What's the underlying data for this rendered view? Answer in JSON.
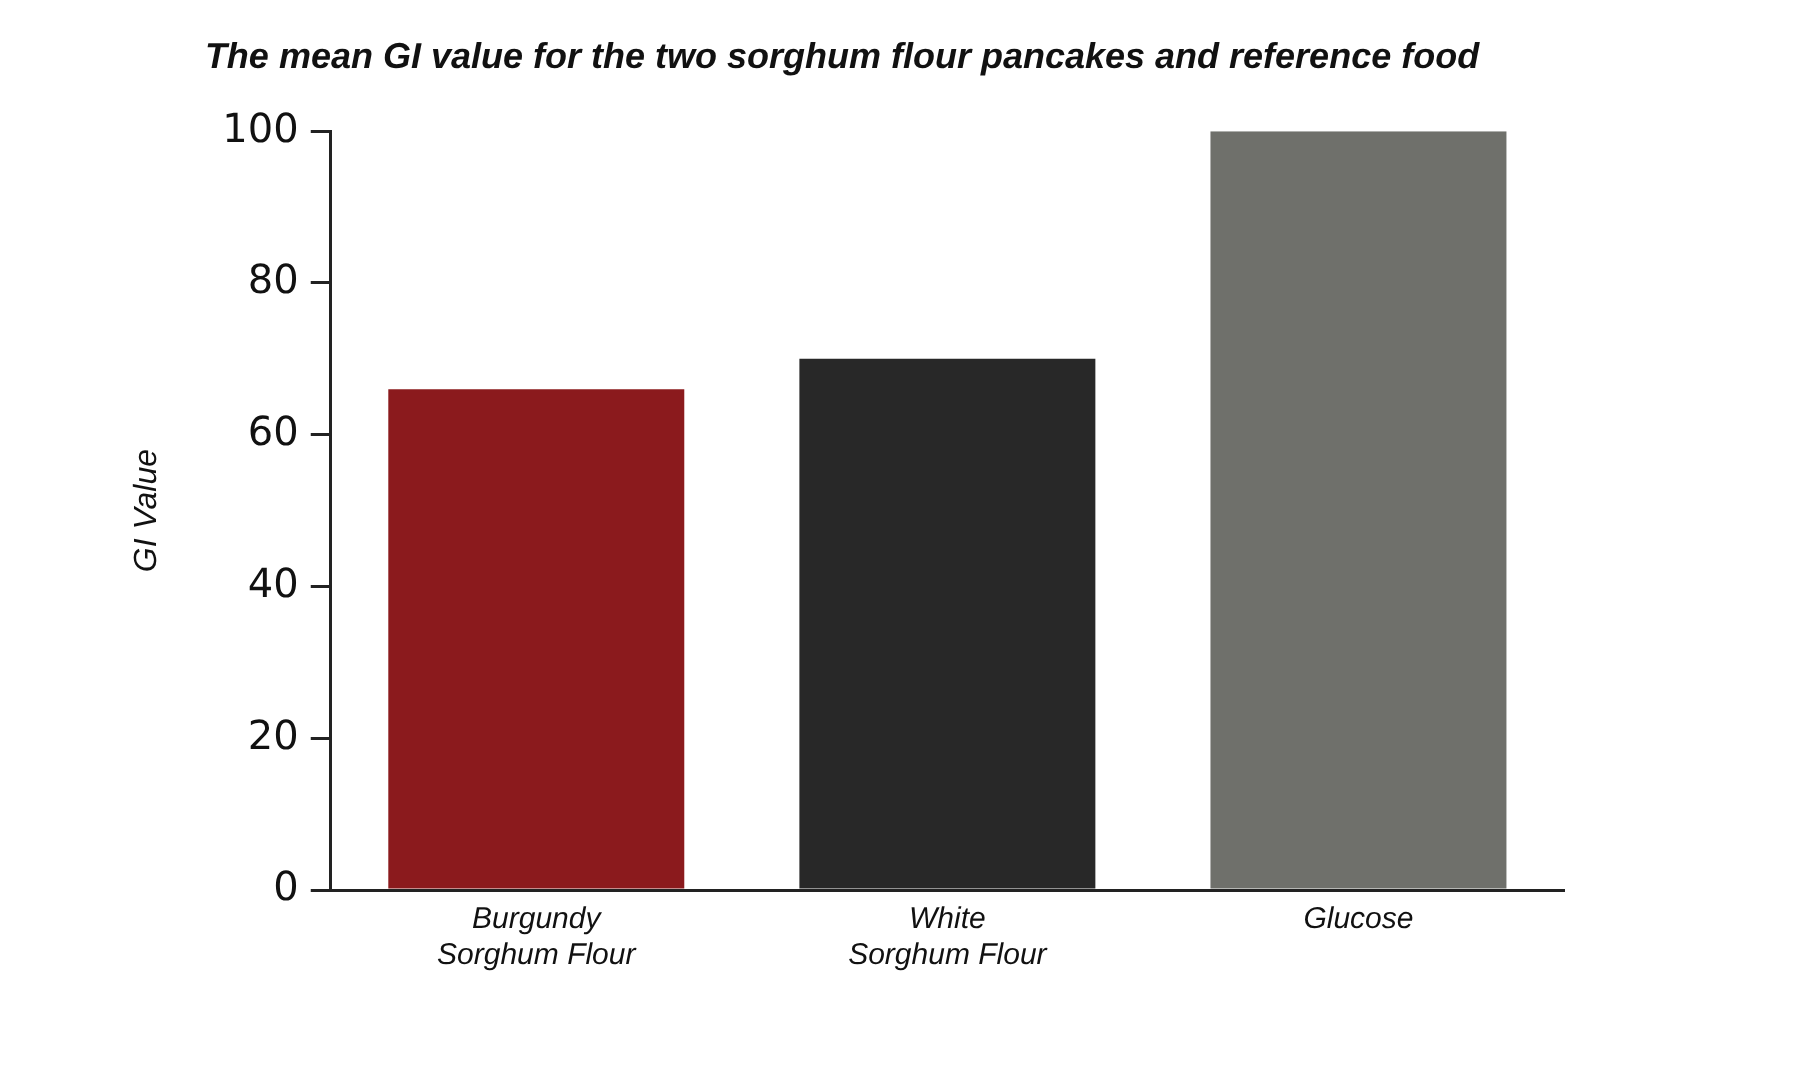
{
  "chart_data": {
    "type": "bar",
    "title": "The mean GI value for the two sorghum flour pancakes and reference food",
    "ylabel": "GI Value",
    "categories": [
      "Burgundy Sorghum Flour",
      "White Sorghum Flour",
      "Glucose"
    ],
    "values": [
      66,
      70,
      100
    ],
    "colors": [
      "#8b1a1d",
      "#282828",
      "#6f706b"
    ],
    "ylim": [
      0,
      100
    ],
    "yticks": [
      0,
      20,
      40,
      60,
      80,
      100
    ],
    "grid": false,
    "legend": false
  }
}
